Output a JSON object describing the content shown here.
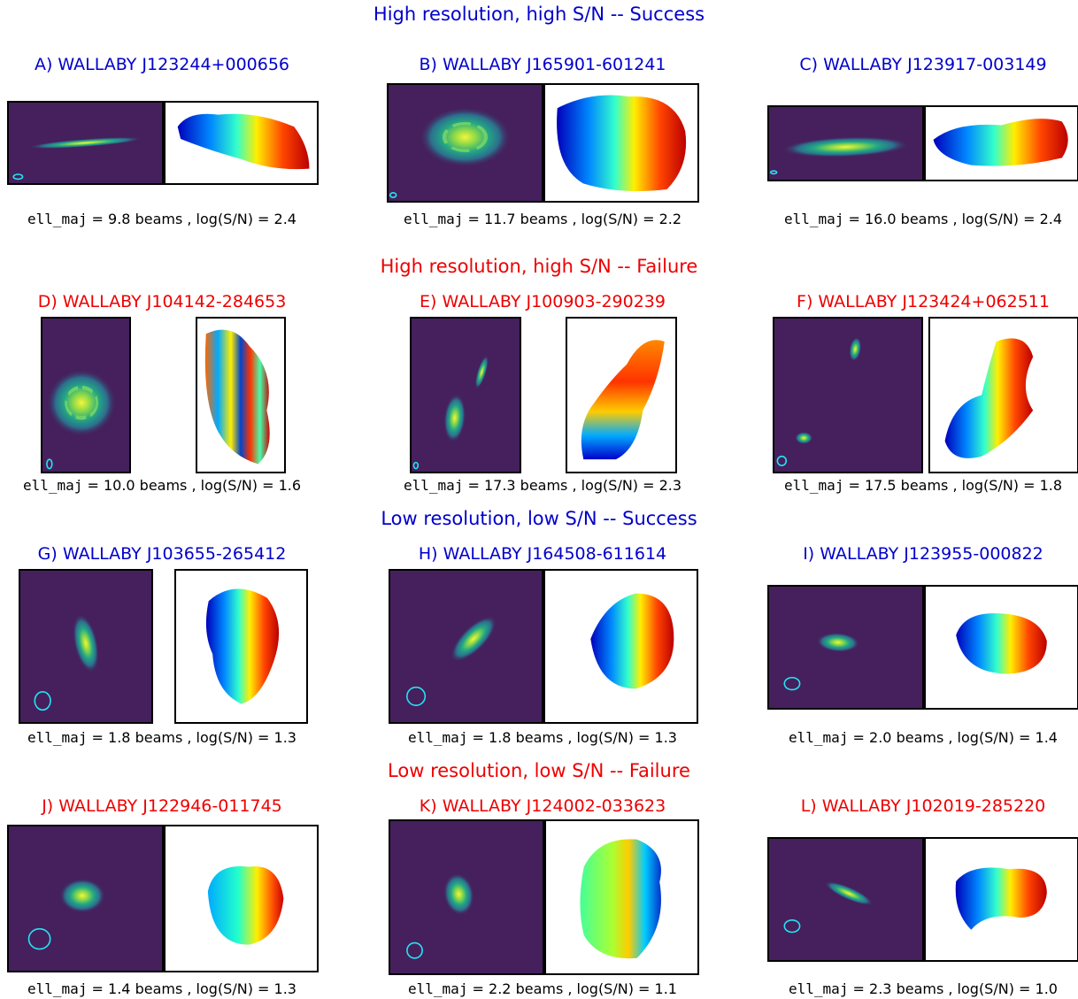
{
  "colors": {
    "success": "#0000cc",
    "failure": "#ee0000",
    "moment0_bg": "#45205c",
    "beam": "#22e5f5"
  },
  "headings": [
    {
      "text": "High resolution, high S/N -- Success",
      "status": "success"
    },
    {
      "text": "High resolution, high S/N -- Failure",
      "status": "failure"
    },
    {
      "text": "Low resolution, low S/N -- Success",
      "status": "success"
    },
    {
      "text": "Low resolution, low S/N -- Failure",
      "status": "failure"
    }
  ],
  "panels": [
    {
      "title": "A) WALLABY J123244+000656",
      "status": "success",
      "ell_maj": "9.8",
      "log_sn": "2.4"
    },
    {
      "title": "B) WALLABY J165901-601241",
      "status": "success",
      "ell_maj": "11.7",
      "log_sn": "2.2"
    },
    {
      "title": "C) WALLABY J123917-003149",
      "status": "success",
      "ell_maj": "16.0",
      "log_sn": "2.4"
    },
    {
      "title": "D) WALLABY J104142-284653",
      "status": "failure",
      "ell_maj": "10.0",
      "log_sn": "1.6"
    },
    {
      "title": "E) WALLABY J100903-290239",
      "status": "failure",
      "ell_maj": "17.3",
      "log_sn": "2.3"
    },
    {
      "title": "F) WALLABY J123424+062511",
      "status": "failure",
      "ell_maj": "17.5",
      "log_sn": "1.8"
    },
    {
      "title": "G) WALLABY J103655-265412",
      "status": "success",
      "ell_maj": "1.8",
      "log_sn": "1.3"
    },
    {
      "title": "H) WALLABY J164508-611614",
      "status": "success",
      "ell_maj": "1.8",
      "log_sn": "1.3"
    },
    {
      "title": "I) WALLABY J123955-000822",
      "status": "success",
      "ell_maj": "2.0",
      "log_sn": "1.4"
    },
    {
      "title": "J) WALLABY J122946-011745",
      "status": "failure",
      "ell_maj": "1.4",
      "log_sn": "1.3"
    },
    {
      "title": "K) WALLABY J124002-033623",
      "status": "failure",
      "ell_maj": "2.2",
      "log_sn": "1.1"
    },
    {
      "title": "L) WALLABY J102019-285220",
      "status": "failure",
      "ell_maj": "2.3",
      "log_sn": "1.0"
    }
  ],
  "caption_text": {
    "ell_label": "ell_maj",
    "beams_text": " = {v} beams , log(S/N) = {s}"
  }
}
